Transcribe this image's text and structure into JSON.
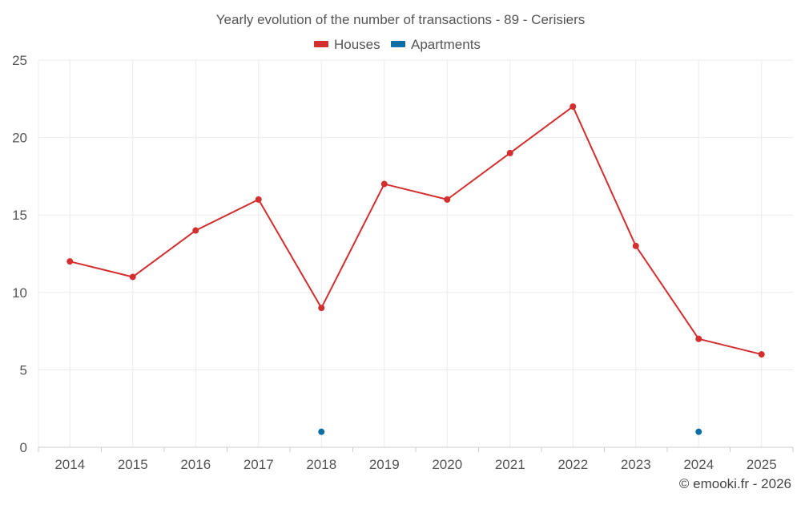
{
  "chart_data": {
    "type": "line",
    "title": "Yearly evolution of the number of transactions - 89 - Cerisiers",
    "xlabel": "",
    "ylabel": "",
    "categories": [
      "2014",
      "2015",
      "2016",
      "2017",
      "2018",
      "2019",
      "2020",
      "2021",
      "2022",
      "2023",
      "2024",
      "2025"
    ],
    "ylim": [
      0,
      25
    ],
    "yticks": [
      0,
      5,
      10,
      15,
      20,
      25
    ],
    "grid": true,
    "legend_position": "top-center",
    "series": [
      {
        "name": "Houses",
        "color": "#d32f2f",
        "values": [
          12,
          11,
          14,
          16,
          9,
          17,
          16,
          19,
          22,
          13,
          7,
          6
        ]
      },
      {
        "name": "Apartments",
        "color": "#0d6ea3",
        "values": [
          null,
          null,
          null,
          null,
          1,
          null,
          null,
          null,
          null,
          null,
          1,
          null
        ]
      }
    ]
  },
  "footer": {
    "credit": "© emooki.fr - 2026"
  }
}
